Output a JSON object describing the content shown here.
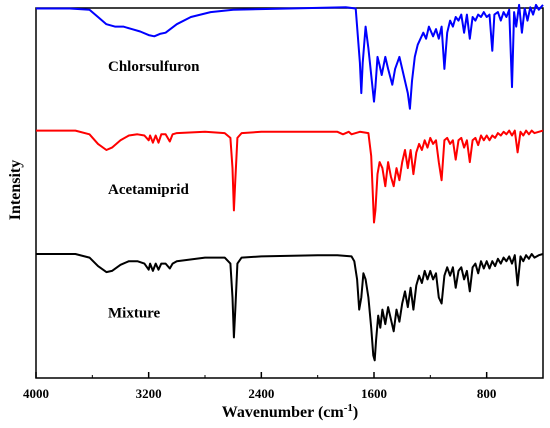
{
  "chart_data": {
    "type": "line",
    "title": "",
    "xlabel": "Wavenumber (cm",
    "xlabel_sup": "-1",
    "xlabel_close": ")",
    "ylabel": "Intensity",
    "xlim": [
      4000,
      400
    ],
    "x_reversed": true,
    "x_ticks": [
      4000,
      3200,
      2400,
      1600,
      800
    ],
    "x_tick_labels": [
      "4000",
      "3200",
      "2400",
      "1600",
      "800"
    ],
    "y_ticks_shown": false,
    "legend": "none",
    "grid": false,
    "series": [
      {
        "name": "Chlorsulfuron",
        "color": "#0000ff",
        "offset": 2,
        "points": [
          [
            4000,
            0.95
          ],
          [
            3760,
            0.95
          ],
          [
            3620,
            0.94
          ],
          [
            3560,
            0.88
          ],
          [
            3500,
            0.82
          ],
          [
            3440,
            0.8
          ],
          [
            3380,
            0.8
          ],
          [
            3320,
            0.78
          ],
          [
            3260,
            0.76
          ],
          [
            3200,
            0.73
          ],
          [
            3160,
            0.72
          ],
          [
            3120,
            0.74
          ],
          [
            3080,
            0.75
          ],
          [
            3000,
            0.82
          ],
          [
            2900,
            0.88
          ],
          [
            2760,
            0.92
          ],
          [
            2600,
            0.94
          ],
          [
            2200,
            0.95
          ],
          [
            1800,
            0.96
          ],
          [
            1730,
            0.95
          ],
          [
            1720,
            0.8
          ],
          [
            1700,
            0.5
          ],
          [
            1690,
            0.25
          ],
          [
            1680,
            0.5
          ],
          [
            1660,
            0.8
          ],
          [
            1640,
            0.62
          ],
          [
            1620,
            0.4
          ],
          [
            1600,
            0.18
          ],
          [
            1590,
            0.3
          ],
          [
            1575,
            0.55
          ],
          [
            1560,
            0.48
          ],
          [
            1545,
            0.4
          ],
          [
            1520,
            0.55
          ],
          [
            1500,
            0.45
          ],
          [
            1470,
            0.32
          ],
          [
            1450,
            0.45
          ],
          [
            1420,
            0.55
          ],
          [
            1400,
            0.45
          ],
          [
            1380,
            0.35
          ],
          [
            1360,
            0.25
          ],
          [
            1345,
            0.12
          ],
          [
            1330,
            0.35
          ],
          [
            1310,
            0.55
          ],
          [
            1290,
            0.65
          ],
          [
            1270,
            0.7
          ],
          [
            1250,
            0.75
          ],
          [
            1230,
            0.7
          ],
          [
            1210,
            0.8
          ],
          [
            1180,
            0.72
          ],
          [
            1160,
            0.78
          ],
          [
            1140,
            0.7
          ],
          [
            1120,
            0.8
          ],
          [
            1100,
            0.45
          ],
          [
            1080,
            0.75
          ],
          [
            1060,
            0.85
          ],
          [
            1040,
            0.8
          ],
          [
            1020,
            0.88
          ],
          [
            1000,
            0.85
          ],
          [
            980,
            0.9
          ],
          [
            960,
            0.75
          ],
          [
            940,
            0.9
          ],
          [
            920,
            0.7
          ],
          [
            900,
            0.88
          ],
          [
            880,
            0.85
          ],
          [
            860,
            0.9
          ],
          [
            840,
            0.88
          ],
          [
            820,
            0.92
          ],
          [
            800,
            0.88
          ],
          [
            780,
            0.9
          ],
          [
            760,
            0.6
          ],
          [
            745,
            0.9
          ],
          [
            720,
            0.92
          ],
          [
            700,
            0.85
          ],
          [
            680,
            0.92
          ],
          [
            660,
            0.88
          ],
          [
            640,
            0.94
          ],
          [
            620,
            0.3
          ],
          [
            605,
            0.92
          ],
          [
            590,
            0.8
          ],
          [
            570,
            0.98
          ],
          [
            550,
            0.75
          ],
          [
            530,
            0.95
          ],
          [
            510,
            0.85
          ],
          [
            490,
            0.96
          ],
          [
            470,
            0.9
          ],
          [
            450,
            0.98
          ],
          [
            430,
            0.94
          ],
          [
            400,
            0.98
          ]
        ]
      },
      {
        "name": "Acetamiprid",
        "color": "#ff0000",
        "offset": 1,
        "points": [
          [
            4000,
            0.96
          ],
          [
            3720,
            0.96
          ],
          [
            3620,
            0.93
          ],
          [
            3560,
            0.85
          ],
          [
            3500,
            0.8
          ],
          [
            3460,
            0.82
          ],
          [
            3400,
            0.88
          ],
          [
            3340,
            0.92
          ],
          [
            3280,
            0.93
          ],
          [
            3230,
            0.92
          ],
          [
            3200,
            0.88
          ],
          [
            3190,
            0.92
          ],
          [
            3170,
            0.86
          ],
          [
            3150,
            0.92
          ],
          [
            3130,
            0.86
          ],
          [
            3110,
            0.93
          ],
          [
            3080,
            0.93
          ],
          [
            3050,
            0.87
          ],
          [
            3030,
            0.93
          ],
          [
            3000,
            0.94
          ],
          [
            2800,
            0.95
          ],
          [
            2660,
            0.94
          ],
          [
            2620,
            0.9
          ],
          [
            2605,
            0.65
          ],
          [
            2595,
            0.3
          ],
          [
            2585,
            0.55
          ],
          [
            2570,
            0.9
          ],
          [
            2540,
            0.94
          ],
          [
            2400,
            0.95
          ],
          [
            2000,
            0.95
          ],
          [
            1860,
            0.95
          ],
          [
            1820,
            0.93
          ],
          [
            1780,
            0.95
          ],
          [
            1760,
            0.93
          ],
          [
            1700,
            0.95
          ],
          [
            1640,
            0.94
          ],
          [
            1620,
            0.75
          ],
          [
            1600,
            0.2
          ],
          [
            1590,
            0.3
          ],
          [
            1575,
            0.6
          ],
          [
            1560,
            0.7
          ],
          [
            1540,
            0.65
          ],
          [
            1520,
            0.5
          ],
          [
            1500,
            0.7
          ],
          [
            1480,
            0.58
          ],
          [
            1460,
            0.5
          ],
          [
            1440,
            0.65
          ],
          [
            1420,
            0.55
          ],
          [
            1400,
            0.7
          ],
          [
            1380,
            0.8
          ],
          [
            1360,
            0.65
          ],
          [
            1340,
            0.8
          ],
          [
            1320,
            0.6
          ],
          [
            1300,
            0.78
          ],
          [
            1280,
            0.85
          ],
          [
            1260,
            0.8
          ],
          [
            1240,
            0.88
          ],
          [
            1220,
            0.82
          ],
          [
            1200,
            0.9
          ],
          [
            1180,
            0.85
          ],
          [
            1160,
            0.88
          ],
          [
            1140,
            0.7
          ],
          [
            1120,
            0.55
          ],
          [
            1100,
            0.88
          ],
          [
            1080,
            0.9
          ],
          [
            1060,
            0.85
          ],
          [
            1040,
            0.88
          ],
          [
            1020,
            0.72
          ],
          [
            1000,
            0.88
          ],
          [
            980,
            0.9
          ],
          [
            960,
            0.82
          ],
          [
            940,
            0.88
          ],
          [
            920,
            0.7
          ],
          [
            900,
            0.88
          ],
          [
            880,
            0.9
          ],
          [
            860,
            0.84
          ],
          [
            840,
            0.92
          ],
          [
            820,
            0.88
          ],
          [
            800,
            0.92
          ],
          [
            780,
            0.88
          ],
          [
            760,
            0.92
          ],
          [
            740,
            0.9
          ],
          [
            720,
            0.94
          ],
          [
            700,
            0.92
          ],
          [
            680,
            0.95
          ],
          [
            660,
            0.93
          ],
          [
            640,
            0.96
          ],
          [
            620,
            0.92
          ],
          [
            600,
            0.96
          ],
          [
            580,
            0.78
          ],
          [
            560,
            0.95
          ],
          [
            540,
            0.92
          ],
          [
            520,
            0.96
          ],
          [
            500,
            0.93
          ],
          [
            480,
            0.96
          ],
          [
            460,
            0.94
          ],
          [
            430,
            0.95
          ],
          [
            400,
            0.96
          ]
        ]
      },
      {
        "name": "Mixture",
        "color": "#000000",
        "offset": 0,
        "points": [
          [
            4000,
            0.96
          ],
          [
            3720,
            0.96
          ],
          [
            3620,
            0.93
          ],
          [
            3560,
            0.86
          ],
          [
            3500,
            0.81
          ],
          [
            3460,
            0.82
          ],
          [
            3400,
            0.87
          ],
          [
            3340,
            0.9
          ],
          [
            3280,
            0.9
          ],
          [
            3230,
            0.88
          ],
          [
            3200,
            0.83
          ],
          [
            3190,
            0.88
          ],
          [
            3170,
            0.82
          ],
          [
            3150,
            0.88
          ],
          [
            3130,
            0.83
          ],
          [
            3110,
            0.88
          ],
          [
            3080,
            0.88
          ],
          [
            3050,
            0.84
          ],
          [
            3030,
            0.88
          ],
          [
            3000,
            0.9
          ],
          [
            2800,
            0.93
          ],
          [
            2660,
            0.93
          ],
          [
            2620,
            0.88
          ],
          [
            2605,
            0.6
          ],
          [
            2595,
            0.27
          ],
          [
            2585,
            0.5
          ],
          [
            2570,
            0.88
          ],
          [
            2540,
            0.93
          ],
          [
            2400,
            0.94
          ],
          [
            2000,
            0.95
          ],
          [
            1860,
            0.95
          ],
          [
            1760,
            0.94
          ],
          [
            1740,
            0.9
          ],
          [
            1720,
            0.75
          ],
          [
            1705,
            0.5
          ],
          [
            1690,
            0.6
          ],
          [
            1675,
            0.8
          ],
          [
            1660,
            0.75
          ],
          [
            1640,
            0.6
          ],
          [
            1620,
            0.35
          ],
          [
            1605,
            0.12
          ],
          [
            1595,
            0.08
          ],
          [
            1585,
            0.25
          ],
          [
            1570,
            0.45
          ],
          [
            1555,
            0.35
          ],
          [
            1540,
            0.5
          ],
          [
            1520,
            0.38
          ],
          [
            1500,
            0.52
          ],
          [
            1480,
            0.42
          ],
          [
            1460,
            0.32
          ],
          [
            1440,
            0.5
          ],
          [
            1420,
            0.4
          ],
          [
            1400,
            0.55
          ],
          [
            1380,
            0.65
          ],
          [
            1360,
            0.52
          ],
          [
            1340,
            0.68
          ],
          [
            1320,
            0.5
          ],
          [
            1300,
            0.7
          ],
          [
            1280,
            0.78
          ],
          [
            1260,
            0.72
          ],
          [
            1240,
            0.82
          ],
          [
            1220,
            0.75
          ],
          [
            1200,
            0.82
          ],
          [
            1180,
            0.75
          ],
          [
            1160,
            0.8
          ],
          [
            1140,
            0.6
          ],
          [
            1120,
            0.55
          ],
          [
            1100,
            0.78
          ],
          [
            1080,
            0.85
          ],
          [
            1060,
            0.78
          ],
          [
            1040,
            0.85
          ],
          [
            1020,
            0.68
          ],
          [
            1000,
            0.82
          ],
          [
            980,
            0.85
          ],
          [
            960,
            0.75
          ],
          [
            940,
            0.82
          ],
          [
            920,
            0.65
          ],
          [
            900,
            0.85
          ],
          [
            880,
            0.88
          ],
          [
            860,
            0.8
          ],
          [
            840,
            0.9
          ],
          [
            820,
            0.84
          ],
          [
            800,
            0.9
          ],
          [
            780,
            0.84
          ],
          [
            760,
            0.9
          ],
          [
            740,
            0.86
          ],
          [
            720,
            0.92
          ],
          [
            700,
            0.88
          ],
          [
            680,
            0.93
          ],
          [
            660,
            0.9
          ],
          [
            640,
            0.94
          ],
          [
            620,
            0.88
          ],
          [
            600,
            0.95
          ],
          [
            580,
            0.7
          ],
          [
            560,
            0.94
          ],
          [
            540,
            0.9
          ],
          [
            520,
            0.95
          ],
          [
            500,
            0.92
          ],
          [
            480,
            0.96
          ],
          [
            460,
            0.93
          ],
          [
            430,
            0.95
          ],
          [
            400,
            0.96
          ]
        ]
      }
    ]
  }
}
